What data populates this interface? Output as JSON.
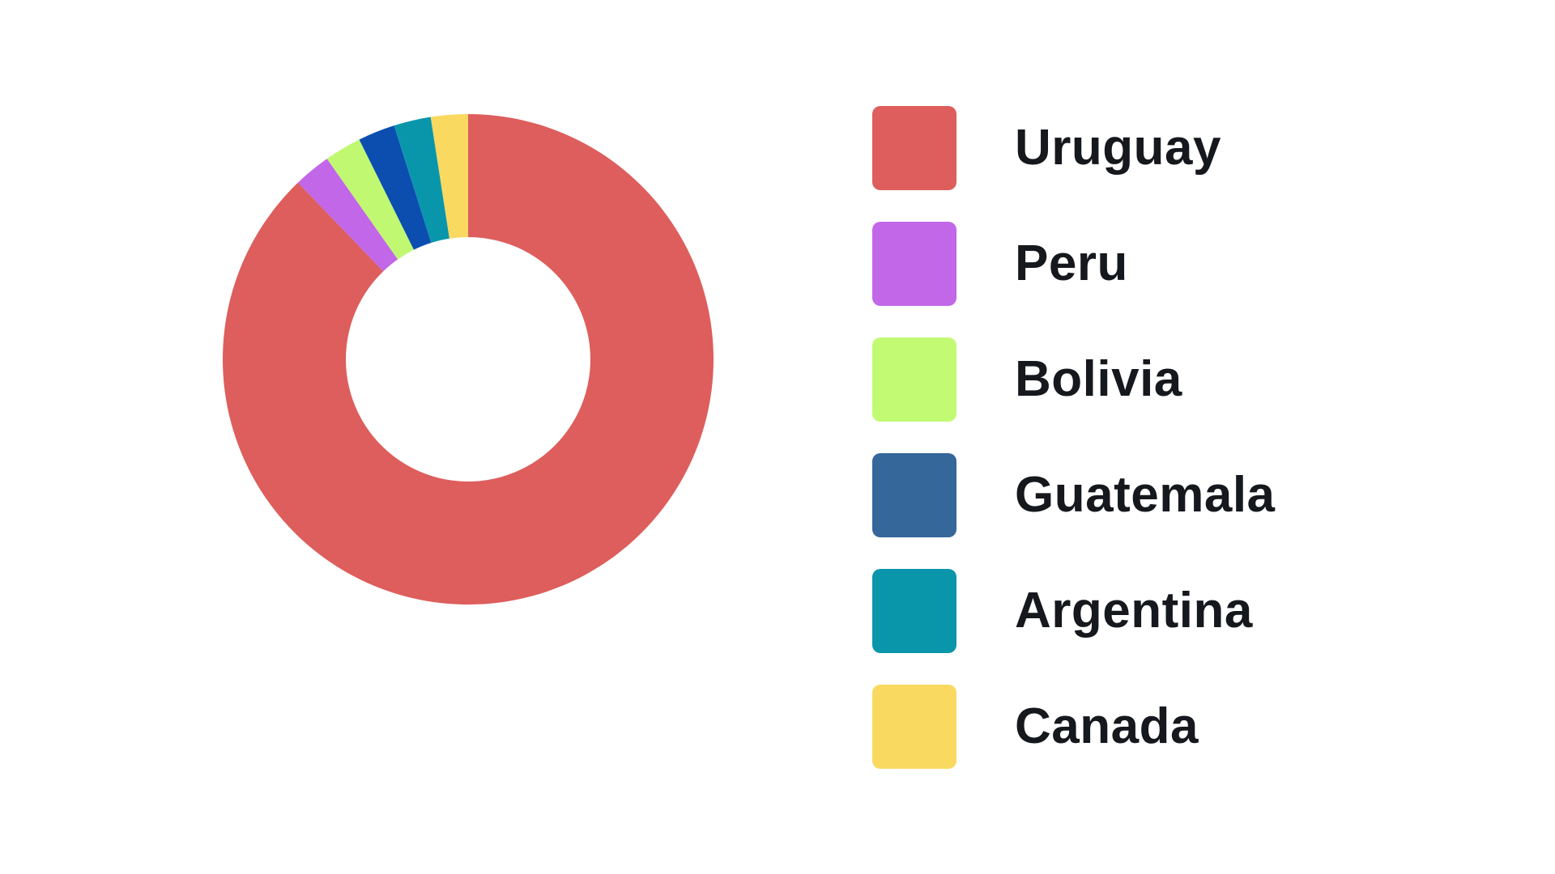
{
  "page": {
    "background": "#ffffff"
  },
  "chart_data": {
    "type": "pie",
    "variant": "donut",
    "title": "",
    "categories": [
      "Uruguay",
      "Peru",
      "Bolivia",
      "Guatemala",
      "Argentina",
      "Canada"
    ],
    "values": [
      36,
      1,
      1,
      1,
      1,
      1
    ],
    "approx_percentages": [
      87.8,
      2.4,
      2.4,
      2.4,
      2.4,
      2.4
    ],
    "slice_colors": [
      "#dd5e5c",
      "#c167e8",
      "#c0f971",
      "#0b4eb0",
      "#0996ab",
      "#fad960"
    ],
    "start_angle_deg": 0,
    "sweep_direction": "clockwise",
    "inner_radius_ratio": 0.5,
    "grid": false,
    "legend_position": "right"
  },
  "legend": {
    "items": [
      {
        "label": "Uruguay",
        "color": "#dd5e5c"
      },
      {
        "label": "Peru",
        "color": "#c167e8"
      },
      {
        "label": "Bolivia",
        "color": "#c2fa73"
      },
      {
        "label": "Guatemala",
        "color": "#35679b"
      },
      {
        "label": "Argentina",
        "color": "#0996ab"
      },
      {
        "label": "Canada",
        "color": "#fad960"
      }
    ],
    "label_color": "#15181d"
  }
}
